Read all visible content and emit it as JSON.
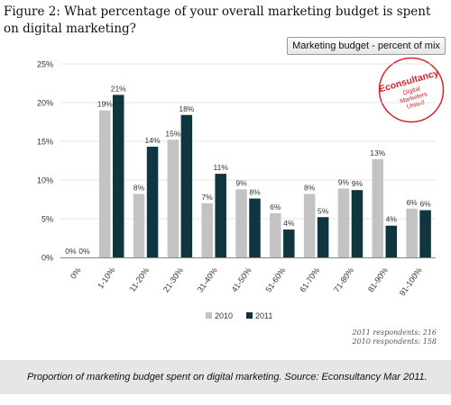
{
  "figure": {
    "title": "Figure 2: What percentage of your overall marketing budget is spent on digital marketing?",
    "badge": "Marketing budget - percent of mix",
    "logo": {
      "brand": "Econsultancy",
      "tagline": "Digital Marketers United",
      "tagline_lines": [
        "Digital",
        "Marketers",
        "United"
      ],
      "color": "#d8232a"
    },
    "respondents": [
      "2011 respondents: 216",
      "2010 respondents: 158"
    ]
  },
  "caption": "Proportion of marketing budget spent on digital marketing. Source: Econsultancy Mar 2011.",
  "chart_data": {
    "type": "bar",
    "title": "",
    "xlabel": "",
    "ylabel": "",
    "categories": [
      "0%",
      "1-10%",
      "11-20%",
      "21-30%",
      "31-40%",
      "41-50%",
      "51-60%",
      "61-70%",
      "71-80%",
      "81-90%",
      "91-100%"
    ],
    "series": [
      {
        "name": "2010",
        "color": "#c3c3c3",
        "values": [
          0,
          19,
          8.2,
          15.2,
          7,
          8.8,
          5.7,
          8.2,
          8.9,
          12.7,
          6.3
        ],
        "labels": [
          "0%",
          "19%",
          "8%",
          "15%",
          "7%",
          "9%",
          "6%",
          "8%",
          "9%",
          "13%",
          "6%"
        ]
      },
      {
        "name": "2011",
        "color": "#0f3541",
        "values": [
          0,
          21,
          14.3,
          18.4,
          10.8,
          7.6,
          3.6,
          5.2,
          8.7,
          4.1,
          6.1
        ],
        "labels": [
          "0%",
          "21%",
          "14%",
          "18%",
          "11%",
          "8%",
          "4%",
          "5%",
          "9%",
          "4%",
          "6%"
        ]
      }
    ],
    "yticks": [
      "0%",
      "5%",
      "10%",
      "15%",
      "20%",
      "25%"
    ],
    "ylim": [
      0,
      25
    ],
    "grid": true,
    "legend": "bottom-center"
  }
}
